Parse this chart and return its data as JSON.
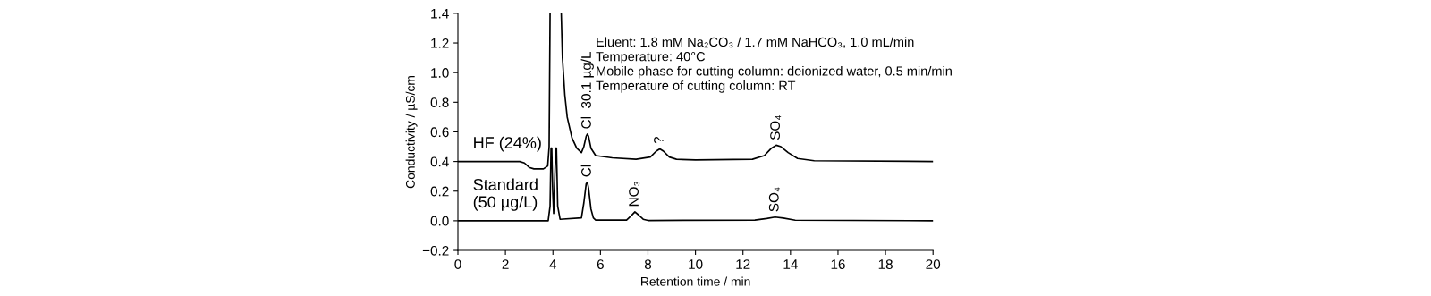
{
  "chart_data": {
    "type": "line",
    "xlabel": "Retention time / min",
    "ylabel": "Conductivity / µS/cm",
    "xlim": [
      0,
      20
    ],
    "ylim": [
      -0.2,
      1.4
    ],
    "xticks": [
      0,
      2,
      4,
      6,
      8,
      10,
      12,
      14,
      16,
      18,
      20
    ],
    "yticks": [
      {
        "value": -0.2,
        "label": "−0.2"
      },
      {
        "value": 0,
        "label": "0.0"
      },
      {
        "value": 0.2,
        "label": "0.2"
      },
      {
        "value": 0.4,
        "label": "0.4"
      },
      {
        "value": 0.6,
        "label": "0.6"
      },
      {
        "value": 0.8,
        "label": "0.8"
      },
      {
        "value": 1.0,
        "label": "1.0"
      },
      {
        "value": 1.2,
        "label": "1.2"
      },
      {
        "value": 1.4,
        "label": "1.4"
      }
    ],
    "grid": false,
    "legend": false,
    "series": [
      {
        "name": "HF (24%)",
        "color": "#000000",
        "x": [
          0,
          2.6,
          2.8,
          3.0,
          3.2,
          3.6,
          3.78,
          3.84,
          3.88,
          4.1,
          4.35,
          4.4,
          4.5,
          4.6,
          4.8,
          5.0,
          5.2,
          5.3,
          5.4,
          5.45,
          5.5,
          5.6,
          5.8,
          6.5,
          7.5,
          8.1,
          8.35,
          8.5,
          8.65,
          8.9,
          9.2,
          10,
          12.4,
          12.9,
          13.2,
          13.4,
          13.6,
          13.9,
          14.3,
          15,
          20
        ],
        "values": [
          0.4,
          0.4,
          0.39,
          0.36,
          0.35,
          0.35,
          0.37,
          0.5,
          1.4,
          null,
          1.4,
          1.1,
          0.85,
          0.7,
          0.56,
          0.49,
          0.46,
          0.5,
          0.57,
          0.585,
          0.57,
          0.49,
          0.44,
          0.425,
          0.415,
          0.43,
          0.47,
          0.485,
          0.47,
          0.43,
          0.415,
          0.41,
          0.415,
          0.44,
          0.49,
          0.51,
          0.5,
          0.46,
          0.42,
          0.405,
          0.4
        ]
      },
      {
        "name": "Standard\n(50 µg/L)",
        "color": "#000000",
        "x": [
          0,
          3.8,
          3.88,
          3.92,
          3.95,
          3.99,
          4.03,
          4.08,
          4.12,
          4.15,
          4.2,
          4.3,
          5.2,
          5.3,
          5.4,
          5.45,
          5.5,
          5.6,
          5.7,
          5.8,
          7.1,
          7.3,
          7.45,
          7.6,
          7.8,
          8.0,
          12.5,
          13.0,
          13.35,
          13.7,
          14.2,
          20
        ],
        "values": [
          0,
          0,
          0.1,
          0.49,
          0.49,
          0.2,
          0.05,
          0.3,
          0.49,
          0.49,
          0.1,
          0.01,
          0.02,
          0.12,
          0.25,
          0.26,
          0.22,
          0.08,
          0.02,
          0.005,
          0.005,
          0.035,
          0.06,
          0.04,
          0.01,
          0.002,
          0.005,
          0.015,
          0.025,
          0.018,
          0.004,
          0.0
        ]
      }
    ],
    "annotations": [
      {
        "text": "Cl  30.1 µg/L",
        "x": 5.45,
        "y": 0.585
      },
      {
        "text": "?",
        "x": 8.5,
        "y": 0.485
      },
      {
        "text": "SO₄",
        "x": 13.4,
        "y": 0.51
      },
      {
        "text": "Cl",
        "x": 5.45,
        "y": 0.26
      },
      {
        "text": "NO₃",
        "x": 7.45,
        "y": 0.06
      },
      {
        "text": "SO₄",
        "x": 13.35,
        "y": 0.025
      },
      "Eluent: 1.8 mM Na₂CO₃ / 1.7 mM NaHCO₃, 1.0 mL/min",
      "Temperature: 40°C",
      "Mobile phase for cutting column: deionized water, 0.5 min/min",
      "Temperature of cutting column: RT"
    ]
  }
}
